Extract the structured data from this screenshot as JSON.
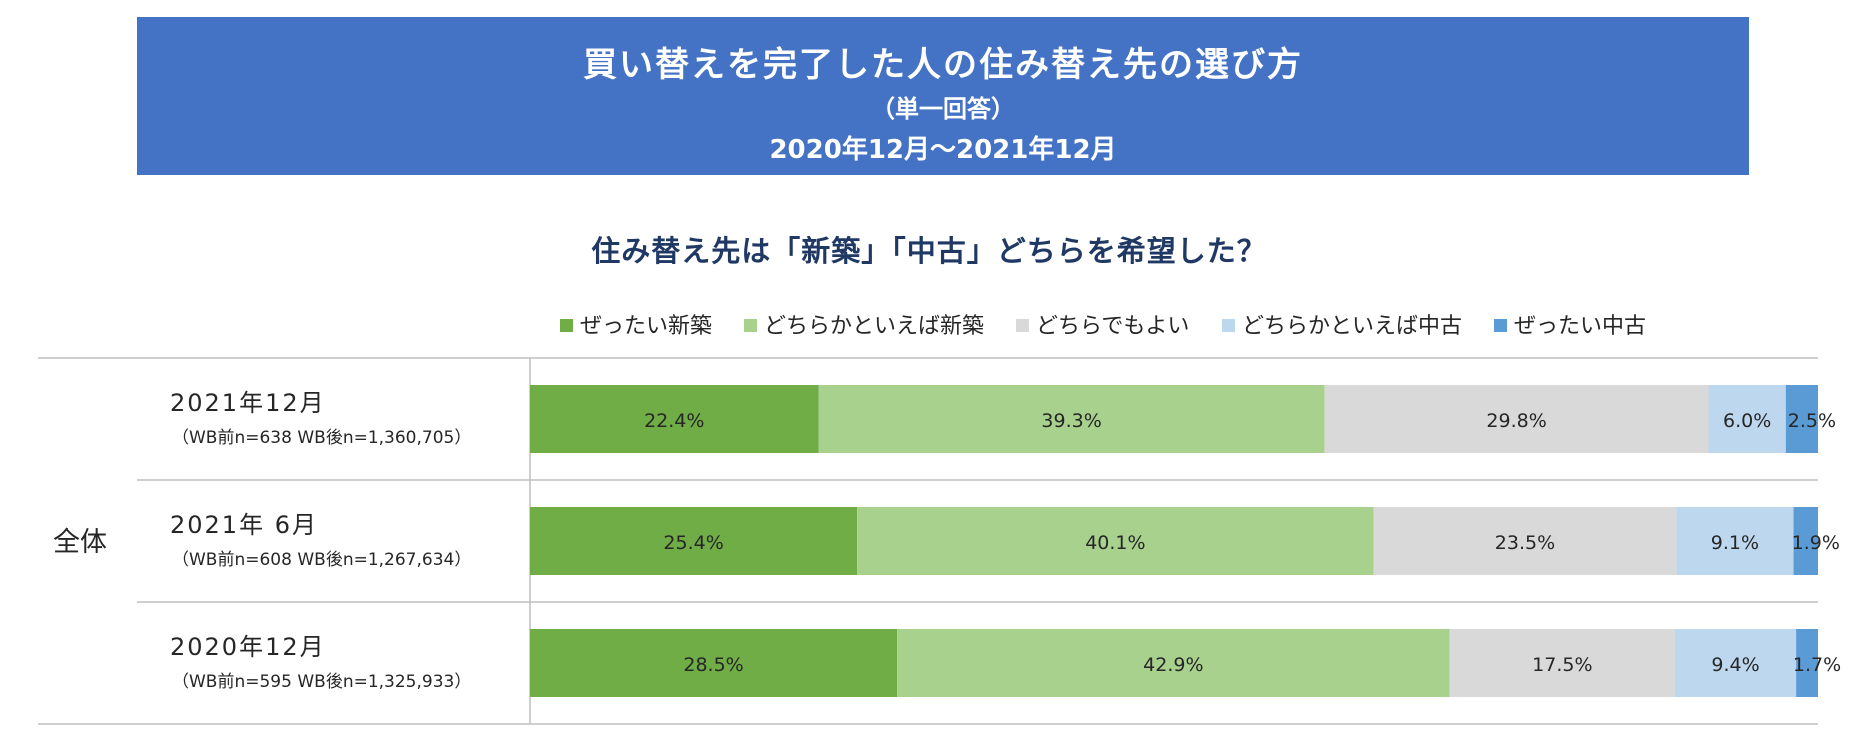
{
  "header": {
    "title": "買い替えを完了した人の住み替え先の選び方",
    "subtitle": "（単一回答）",
    "period": "2020年12月～2021年12月"
  },
  "chart_data": {
    "type": "bar",
    "orientation": "horizontal",
    "stacked": true,
    "percent": true,
    "title": "住み替え先は「新築」「中古」どちらを希望した？",
    "group_label": "全体",
    "categories": [
      "2021年12月",
      "2021年 6月",
      "2020年12月"
    ],
    "category_notes": [
      "（WB前n=638 WB後n=1,360,705）",
      "（WB前n=608 WB後n=1,267,634）",
      "（WB前n=595 WB後n=1,325,933）"
    ],
    "series": [
      {
        "name": "ぜったい新築",
        "values": [
          22.4,
          25.4,
          28.5
        ],
        "labels": [
          "22.4%",
          "25.4%",
          "28.5%"
        ],
        "color": "#70ad47"
      },
      {
        "name": "どちらかといえば新築",
        "values": [
          39.3,
          40.1,
          42.9
        ],
        "labels": [
          "39.3%",
          "40.1%",
          "42.9%"
        ],
        "color": "#a9d18e"
      },
      {
        "name": "どちらでもよい",
        "values": [
          29.8,
          23.5,
          17.5
        ],
        "labels": [
          "29.8%",
          "23.5%",
          "17.5%"
        ],
        "color": "#d9d9d9"
      },
      {
        "name": "どちらかといえば中古",
        "values": [
          6.0,
          9.1,
          9.4
        ],
        "labels": [
          "6.0%",
          "9.1%",
          "9.4%"
        ],
        "color": "#bdd7ee"
      },
      {
        "name": "ぜったい中古",
        "values": [
          2.5,
          1.9,
          1.7
        ],
        "labels": [
          "2.5%",
          "1.9%",
          "1.7%"
        ],
        "color": "#5b9bd5"
      }
    ],
    "xlim": [
      0,
      100
    ],
    "legend_position": "top",
    "grid": false
  }
}
